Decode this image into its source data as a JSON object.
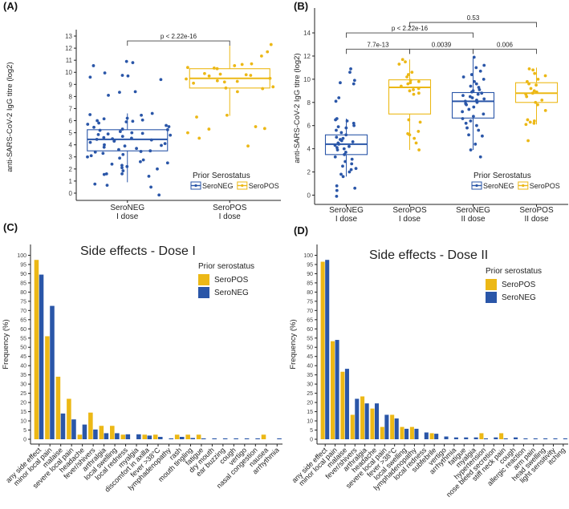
{
  "colors": {
    "seroneg": "#2a56a8",
    "seropos": "#ecb816",
    "axis": "#222222",
    "bracket": "#444444"
  },
  "chart_data": [
    {
      "panel": "(A)",
      "type": "boxplot",
      "ylabel": "anti-SARS-CoV-2 IgG titre (log2)",
      "ylim": [
        -0.6,
        13.2
      ],
      "yticks": [
        0,
        1,
        2,
        3,
        4,
        5,
        6,
        7,
        8,
        9,
        10,
        11,
        12,
        13
      ],
      "categories": [
        "SeroNEG\nI dose",
        "SeroPOS\nI dose"
      ],
      "groups": [
        {
          "category": "SeroNEG\nI dose",
          "status": "SeroNEG",
          "q1": 3.5,
          "median": 4.45,
          "q3": 5.25,
          "whisker_low": 0.9,
          "whisker_high": 6.6,
          "points": [
            10.9,
            10.8,
            10.55,
            9.95,
            9.75,
            9.7,
            9.6,
            9.4,
            8.4,
            8.35,
            8.1,
            6.6,
            6.45,
            6.5,
            6.2,
            6.15,
            6.05,
            6.0,
            5.95,
            5.9,
            5.8,
            5.7,
            5.6,
            5.5,
            5.45,
            5.3,
            5.25,
            5.2,
            5.1,
            5.0,
            4.95,
            4.9,
            4.85,
            4.8,
            4.7,
            4.6,
            4.55,
            4.5,
            4.45,
            4.4,
            4.35,
            4.3,
            4.2,
            4.1,
            4.0,
            3.95,
            3.9,
            3.8,
            3.7,
            3.6,
            3.5,
            3.45,
            3.4,
            3.3,
            3.2,
            3.1,
            3.0,
            2.9,
            2.75,
            2.6,
            2.5,
            2.4,
            2.3,
            2.2,
            2.1,
            2.0,
            1.85,
            1.6,
            1.6,
            1.55,
            1.4,
            0.75,
            0.65,
            0.5,
            -0.15
          ]
        },
        {
          "category": "SeroPOS\nI dose",
          "status": "SeroPOS",
          "q1": 8.7,
          "median": 9.5,
          "q3": 10.3,
          "whisker_low": 6.4,
          "whisker_high": 12.2,
          "points": [
            12.3,
            11.7,
            11.35,
            10.7,
            10.65,
            10.55,
            10.4,
            10.35,
            10.3,
            9.9,
            9.85,
            9.8,
            9.75,
            9.7,
            9.5,
            9.45,
            9.3,
            9.25,
            9.2,
            9.1,
            8.8,
            8.7,
            8.65,
            8.4,
            6.45,
            6.3,
            5.5,
            5.35,
            5.3,
            5.0,
            4.55,
            3.9
          ]
        }
      ],
      "comparisons": [
        {
          "from": 0,
          "to": 1,
          "label": "p < 2.22e-16"
        }
      ],
      "legend": {
        "title": "Prior Serostatus",
        "entries": [
          "SeroNEG",
          "SeroPOS"
        ],
        "position": "bottom-right"
      }
    },
    {
      "panel": "(B)",
      "type": "boxplot",
      "ylabel": "anti-SARS-CoV-2 IgG titre (log2)",
      "ylim": [
        -0.8,
        15.8
      ],
      "yticks": [
        0,
        2,
        4,
        6,
        8,
        10,
        12,
        14
      ],
      "categories": [
        "SeroNEG\nI dose",
        "SeroPOS\nI dose",
        "SeroNEG\nII dose",
        "SeroPOS\nII dose"
      ],
      "groups": [
        {
          "category": "SeroNEG\nI dose",
          "status": "SeroNEG",
          "q1": 3.5,
          "median": 4.4,
          "q3": 5.2,
          "whisker_low": 1.6,
          "whisker_high": 6.6,
          "points": [
            10.9,
            10.6,
            9.9,
            9.7,
            9.6,
            8.4,
            8.1,
            6.6,
            6.5,
            6.4,
            6.2,
            6.0,
            5.9,
            5.8,
            5.6,
            5.4,
            5.2,
            5.0,
            4.9,
            4.8,
            4.7,
            4.6,
            4.5,
            4.4,
            4.3,
            4.2,
            4.1,
            4.0,
            3.9,
            3.7,
            3.5,
            3.3,
            3.1,
            2.9,
            2.7,
            2.5,
            2.3,
            2.2,
            2.0,
            1.8,
            1.6,
            0.8,
            0.6,
            0.4,
            -0.1
          ]
        },
        {
          "category": "SeroPOS\nI dose",
          "status": "SeroPOS",
          "q1": 7.0,
          "median": 9.3,
          "q3": 9.95,
          "whisker_low": 3.9,
          "whisker_high": 11.7,
          "points": [
            11.7,
            11.5,
            11.3,
            10.6,
            10.4,
            10.2,
            9.9,
            9.8,
            9.7,
            9.6,
            9.4,
            9.2,
            9.1,
            9.0,
            8.8,
            8.7,
            6.5,
            6.3,
            5.5,
            5.3,
            5.2,
            4.9,
            4.5,
            3.9
          ]
        },
        {
          "category": "SeroNEG\nII dose",
          "status": "SeroNEG",
          "q1": 6.65,
          "median": 8.1,
          "q3": 8.85,
          "whisker_low": 3.9,
          "whisker_high": 11.9,
          "points": [
            11.9,
            11.2,
            11.0,
            10.7,
            10.4,
            10.2,
            10.0,
            9.8,
            9.6,
            9.4,
            9.3,
            9.1,
            9.0,
            8.9,
            8.8,
            8.7,
            8.6,
            8.5,
            8.4,
            8.3,
            8.2,
            8.1,
            8.0,
            7.9,
            7.8,
            7.6,
            7.4,
            7.2,
            7.0,
            6.8,
            6.6,
            6.4,
            6.2,
            6.0,
            5.8,
            5.6,
            5.2,
            5.1,
            4.4,
            3.9,
            3.3
          ]
        },
        {
          "category": "SeroPOS\nII dose",
          "status": "SeroPOS",
          "q1": 8.0,
          "median": 8.8,
          "q3": 9.7,
          "whisker_low": 6.1,
          "whisker_high": 11.0,
          "points": [
            10.9,
            10.8,
            10.5,
            10.3,
            10.0,
            9.8,
            9.6,
            9.5,
            9.2,
            9.0,
            8.9,
            8.8,
            8.7,
            8.5,
            8.2,
            8.0,
            7.8,
            7.3,
            6.5,
            6.4,
            6.3,
            6.2,
            6.1,
            4.7
          ]
        }
      ],
      "comparisons": [
        {
          "from": 0,
          "to": 1,
          "label": "7.7e-13"
        },
        {
          "from": 1,
          "to": 2,
          "label": "0.0039"
        },
        {
          "from": 2,
          "to": 3,
          "label": "0.006"
        },
        {
          "from": 0,
          "to": 2,
          "label": "p < 2.22e-16"
        },
        {
          "from": 1,
          "to": 3,
          "label": "0.53"
        }
      ],
      "legend": {
        "title": "Prior Serostatus",
        "entries": [
          "SeroNEG",
          "SeroPOS"
        ],
        "position": "bottom-right"
      }
    },
    {
      "panel": "(C)",
      "type": "bar",
      "title": "Side effects - Dose I",
      "ylabel": "Frequency (%)",
      "ylim": [
        0,
        105
      ],
      "yticks": [
        0,
        5,
        10,
        15,
        20,
        25,
        30,
        35,
        40,
        45,
        50,
        55,
        60,
        65,
        70,
        75,
        80,
        85,
        90,
        95,
        100
      ],
      "categories": [
        "any side effect",
        "minor local pain",
        "malaise",
        "severe local pain",
        "headache",
        "fever/shivers",
        "arthralgia",
        "local swelling",
        "local redness",
        "myalgia",
        "discomfort in axilla",
        "fever >38°C",
        "lymphadenopathy",
        "rash",
        "mouth tingling",
        "fatigue",
        "dry mouth",
        "ear buzzing",
        "cough",
        "vertigo",
        "nasal congestion",
        "nausea",
        "arrhythmia"
      ],
      "series": [
        {
          "name": "SeroPOS",
          "values": [
            97.5,
            56,
            34,
            22,
            2.5,
            14.5,
            7.3,
            7.3,
            2.5,
            0,
            2.5,
            2.5,
            0,
            2.5,
            2.5,
            2.5,
            0,
            0,
            0,
            0,
            0,
            2.5,
            0
          ]
        },
        {
          "name": "SeroNEG",
          "values": [
            89.5,
            72.5,
            14,
            10.8,
            8,
            5.3,
            3.3,
            3.3,
            2.7,
            2.7,
            2,
            1.3,
            0.5,
            1.3,
            0.7,
            0.5,
            0.5,
            0.5,
            0.5,
            0.5,
            0.5,
            0,
            0.5
          ]
        }
      ],
      "legend": {
        "title": "Prior serostatus",
        "entries": [
          "SeroPOS",
          "SeroNEG"
        ],
        "position": "top-right"
      }
    },
    {
      "panel": "(D)",
      "type": "bar",
      "title": "Side effects - Dose II",
      "ylabel": "Frequency (%)",
      "ylim": [
        0,
        105
      ],
      "yticks": [
        0,
        5,
        10,
        15,
        20,
        25,
        30,
        35,
        40,
        45,
        50,
        55,
        60,
        65,
        70,
        75,
        80,
        85,
        90,
        95,
        100
      ],
      "categories": [
        "any side effect",
        "minor local pain",
        "malaise",
        "fever/shivers",
        "arthralgia",
        "headache",
        "severe local pain",
        "fever >38°C",
        "local swelling",
        "lymphadenopathy",
        "local redness",
        "subfebrile",
        "vertigo",
        "arrhythmia",
        "fatigue",
        "myalgia",
        "hypertension",
        "nose bleed secretion",
        "stiff neck pain",
        "cough",
        "allergic reaction",
        "arm pain",
        "head swelling",
        "light sensitivity",
        "itching"
      ],
      "series": [
        {
          "name": "SeroPOS",
          "values": [
            96.5,
            53.3,
            36.7,
            13.3,
            23.3,
            16.7,
            6.7,
            13.3,
            6.7,
            6.7,
            0,
            3.3,
            0,
            0,
            0,
            0,
            3.3,
            0,
            3.3,
            0,
            0,
            0,
            0,
            0,
            0
          ]
        },
        {
          "name": "SeroNEG",
          "values": [
            97.5,
            54,
            38.3,
            22,
            19.5,
            19.5,
            13.3,
            11.3,
            5.7,
            5.7,
            3.7,
            3.0,
            1.5,
            1.0,
            1.0,
            1.0,
            0.5,
            1.0,
            0.5,
            1.0,
            0.5,
            0.5,
            0.5,
            0.5,
            0.5
          ]
        }
      ],
      "legend": {
        "title": "Prior serostatus",
        "entries": [
          "SeroPOS",
          "SeroNEG"
        ],
        "position": "top-right"
      }
    }
  ]
}
